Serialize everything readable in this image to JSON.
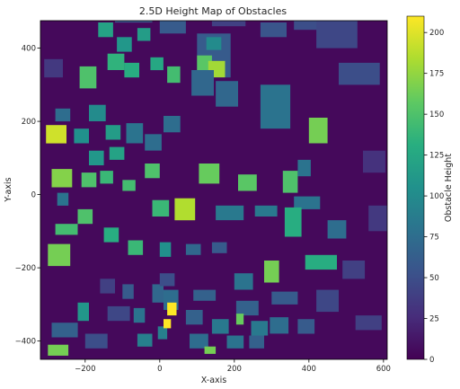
{
  "chart_data": {
    "type": "heatmap",
    "title": "2.5D Height Map of Obstacles",
    "xlabel": "X-axis",
    "ylabel": "Y-axis",
    "xlim": [
      -320,
      610
    ],
    "ylim": [
      -450,
      475
    ],
    "x_ticks": [
      -200,
      0,
      200,
      400,
      600
    ],
    "y_ticks": [
      -400,
      -200,
      0,
      200,
      400
    ],
    "grid": false,
    "colormap": "viridis",
    "colorbar": {
      "label": "Obstacle Height",
      "range": [
        0,
        210
      ],
      "ticks": [
        0,
        25,
        50,
        75,
        100,
        125,
        150,
        175,
        200
      ]
    },
    "background_height": 5,
    "obstacles": [
      {
        "x": -120,
        "y": 470,
        "w": 100,
        "h": 60,
        "height": 55
      },
      {
        "x": 0,
        "y": 440,
        "w": 70,
        "h": 40,
        "height": 60
      },
      {
        "x": 140,
        "y": 460,
        "w": 90,
        "h": 60,
        "height": 40
      },
      {
        "x": 100,
        "y": 320,
        "w": 90,
        "h": 120,
        "height": 60
      },
      {
        "x": 270,
        "y": 430,
        "w": 70,
        "h": 40,
        "height": 55
      },
      {
        "x": 360,
        "y": 450,
        "w": 90,
        "h": 40,
        "height": 50
      },
      {
        "x": 420,
        "y": 400,
        "w": 110,
        "h": 90,
        "height": 45
      },
      {
        "x": 480,
        "y": 300,
        "w": 110,
        "h": 60,
        "height": 50
      },
      {
        "x": -165,
        "y": 430,
        "w": 40,
        "h": 40,
        "height": 120
      },
      {
        "x": -115,
        "y": 390,
        "w": 40,
        "h": 40,
        "height": 110
      },
      {
        "x": -60,
        "y": 420,
        "w": 35,
        "h": 35,
        "height": 115
      },
      {
        "x": -140,
        "y": 340,
        "w": 45,
        "h": 45,
        "height": 135
      },
      {
        "x": -95,
        "y": 320,
        "w": 40,
        "h": 40,
        "height": 130
      },
      {
        "x": -25,
        "y": 340,
        "w": 35,
        "h": 35,
        "height": 125
      },
      {
        "x": -215,
        "y": 290,
        "w": 45,
        "h": 60,
        "height": 150
      },
      {
        "x": 20,
        "y": 305,
        "w": 35,
        "h": 45,
        "height": 145
      },
      {
        "x": 100,
        "y": 340,
        "w": 40,
        "h": 40,
        "height": 155
      },
      {
        "x": 125,
        "y": 395,
        "w": 40,
        "h": 35,
        "height": 100
      },
      {
        "x": 130,
        "y": 320,
        "w": 45,
        "h": 45,
        "height": 180
      },
      {
        "x": 85,
        "y": 270,
        "w": 60,
        "h": 70,
        "height": 70
      },
      {
        "x": 150,
        "y": 240,
        "w": 60,
        "h": 70,
        "height": 70
      },
      {
        "x": 270,
        "y": 180,
        "w": 80,
        "h": 120,
        "height": 80
      },
      {
        "x": 400,
        "y": 140,
        "w": 50,
        "h": 70,
        "height": 165
      },
      {
        "x": -280,
        "y": 200,
        "w": 40,
        "h": 35,
        "height": 75
      },
      {
        "x": -190,
        "y": 200,
        "w": 45,
        "h": 45,
        "height": 100
      },
      {
        "x": -230,
        "y": 140,
        "w": 40,
        "h": 40,
        "height": 105
      },
      {
        "x": -145,
        "y": 150,
        "w": 40,
        "h": 40,
        "height": 115
      },
      {
        "x": -305,
        "y": 140,
        "w": 55,
        "h": 50,
        "height": 195
      },
      {
        "x": -190,
        "y": 80,
        "w": 40,
        "h": 40,
        "height": 110
      },
      {
        "x": -135,
        "y": 95,
        "w": 40,
        "h": 35,
        "height": 120
      },
      {
        "x": -90,
        "y": 140,
        "w": 45,
        "h": 55,
        "height": 80
      },
      {
        "x": -40,
        "y": 120,
        "w": 45,
        "h": 45,
        "height": 75
      },
      {
        "x": -40,
        "y": 45,
        "w": 40,
        "h": 40,
        "height": 150
      },
      {
        "x": 10,
        "y": 170,
        "w": 45,
        "h": 45,
        "height": 75
      },
      {
        "x": -290,
        "y": 20,
        "w": 55,
        "h": 50,
        "height": 170
      },
      {
        "x": -210,
        "y": 20,
        "w": 40,
        "h": 40,
        "height": 150
      },
      {
        "x": -160,
        "y": 30,
        "w": 35,
        "h": 35,
        "height": 140
      },
      {
        "x": -100,
        "y": 10,
        "w": 35,
        "h": 30,
        "height": 145
      },
      {
        "x": 105,
        "y": 30,
        "w": 55,
        "h": 55,
        "height": 160
      },
      {
        "x": 210,
        "y": 10,
        "w": 50,
        "h": 45,
        "height": 155
      },
      {
        "x": 40,
        "y": -70,
        "w": 55,
        "h": 60,
        "height": 185
      },
      {
        "x": -20,
        "y": -60,
        "w": 45,
        "h": 45,
        "height": 140
      },
      {
        "x": 150,
        "y": -70,
        "w": 75,
        "h": 40,
        "height": 85
      },
      {
        "x": 255,
        "y": -60,
        "w": 60,
        "h": 30,
        "height": 85
      },
      {
        "x": 360,
        "y": -40,
        "w": 70,
        "h": 35,
        "height": 80
      },
      {
        "x": 330,
        "y": 5,
        "w": 40,
        "h": 60,
        "height": 150
      },
      {
        "x": 370,
        "y": 50,
        "w": 35,
        "h": 45,
        "height": 80
      },
      {
        "x": 335,
        "y": -115,
        "w": 45,
        "h": 80,
        "height": 130
      },
      {
        "x": 450,
        "y": -120,
        "w": 50,
        "h": 50,
        "height": 75
      },
      {
        "x": -280,
        "y": -110,
        "w": 60,
        "h": 30,
        "height": 145
      },
      {
        "x": -220,
        "y": -80,
        "w": 40,
        "h": 40,
        "height": 150
      },
      {
        "x": -150,
        "y": -130,
        "w": 40,
        "h": 40,
        "height": 130
      },
      {
        "x": -300,
        "y": -195,
        "w": 60,
        "h": 60,
        "height": 165
      },
      {
        "x": -85,
        "y": -165,
        "w": 40,
        "h": 40,
        "height": 140
      },
      {
        "x": 0,
        "y": -170,
        "w": 30,
        "h": 40,
        "height": 105
      },
      {
        "x": 70,
        "y": -165,
        "w": 40,
        "h": 30,
        "height": 70
      },
      {
        "x": 140,
        "y": -160,
        "w": 40,
        "h": 30,
        "height": 60
      },
      {
        "x": 280,
        "y": -240,
        "w": 40,
        "h": 60,
        "height": 165
      },
      {
        "x": 390,
        "y": -205,
        "w": 85,
        "h": 40,
        "height": 130
      },
      {
        "x": 200,
        "y": -260,
        "w": 50,
        "h": 45,
        "height": 80
      },
      {
        "x": -160,
        "y": -270,
        "w": 40,
        "h": 40,
        "height": 40
      },
      {
        "x": -100,
        "y": -285,
        "w": 30,
        "h": 40,
        "height": 60
      },
      {
        "x": -20,
        "y": -295,
        "w": 30,
        "h": 50,
        "height": 70
      },
      {
        "x": 10,
        "y": -315,
        "w": 40,
        "h": 55,
        "height": 75
      },
      {
        "x": 90,
        "y": -290,
        "w": 60,
        "h": 30,
        "height": 65
      },
      {
        "x": 205,
        "y": -330,
        "w": 60,
        "h": 40,
        "height": 65
      },
      {
        "x": 300,
        "y": -300,
        "w": 70,
        "h": 35,
        "height": 60
      },
      {
        "x": 420,
        "y": -320,
        "w": 60,
        "h": 60,
        "height": 45
      },
      {
        "x": 525,
        "y": -370,
        "w": 70,
        "h": 40,
        "height": 40
      },
      {
        "x": -220,
        "y": -345,
        "w": 30,
        "h": 50,
        "height": 110
      },
      {
        "x": -140,
        "y": -345,
        "w": 60,
        "h": 40,
        "height": 45
      },
      {
        "x": -70,
        "y": -350,
        "w": 30,
        "h": 40,
        "height": 80
      },
      {
        "x": 70,
        "y": -355,
        "w": 45,
        "h": 40,
        "height": 65
      },
      {
        "x": 205,
        "y": -355,
        "w": 20,
        "h": 30,
        "height": 160
      },
      {
        "x": 140,
        "y": -380,
        "w": 45,
        "h": 40,
        "height": 85
      },
      {
        "x": 245,
        "y": -385,
        "w": 45,
        "h": 40,
        "height": 85
      },
      {
        "x": 295,
        "y": -380,
        "w": 50,
        "h": 45,
        "height": 75
      },
      {
        "x": 370,
        "y": -380,
        "w": 45,
        "h": 40,
        "height": 60
      },
      {
        "x": -290,
        "y": -390,
        "w": 70,
        "h": 40,
        "height": 65
      },
      {
        "x": -200,
        "y": -420,
        "w": 60,
        "h": 40,
        "height": 50
      },
      {
        "x": -60,
        "y": -415,
        "w": 40,
        "h": 35,
        "height": 90
      },
      {
        "x": 80,
        "y": -420,
        "w": 50,
        "h": 40,
        "height": 75
      },
      {
        "x": 120,
        "y": -435,
        "w": 30,
        "h": 20,
        "height": 165
      },
      {
        "x": 180,
        "y": -420,
        "w": 45,
        "h": 35,
        "height": 80
      },
      {
        "x": 240,
        "y": -420,
        "w": 40,
        "h": 35,
        "height": 65
      },
      {
        "x": -300,
        "y": -440,
        "w": 55,
        "h": 30,
        "height": 165
      },
      {
        "x": -5,
        "y": -395,
        "w": 25,
        "h": 35,
        "height": 90
      },
      {
        "x": 490,
        "y": -230,
        "w": 60,
        "h": 50,
        "height": 40
      },
      {
        "x": 560,
        "y": -100,
        "w": 50,
        "h": 70,
        "height": 35
      },
      {
        "x": 545,
        "y": 60,
        "w": 60,
        "h": 60,
        "height": 30
      },
      {
        "x": -310,
        "y": 320,
        "w": 50,
        "h": 50,
        "height": 35
      },
      {
        "x": -275,
        "y": -30,
        "w": 30,
        "h": 35,
        "height": 80
      },
      {
        "x": 0,
        "y": -250,
        "w": 40,
        "h": 35,
        "height": 50
      },
      {
        "x": 20,
        "y": -330,
        "w": 25,
        "h": 35,
        "height": 210
      },
      {
        "x": 10,
        "y": -365,
        "w": 20,
        "h": 25,
        "height": 210
      }
    ]
  }
}
